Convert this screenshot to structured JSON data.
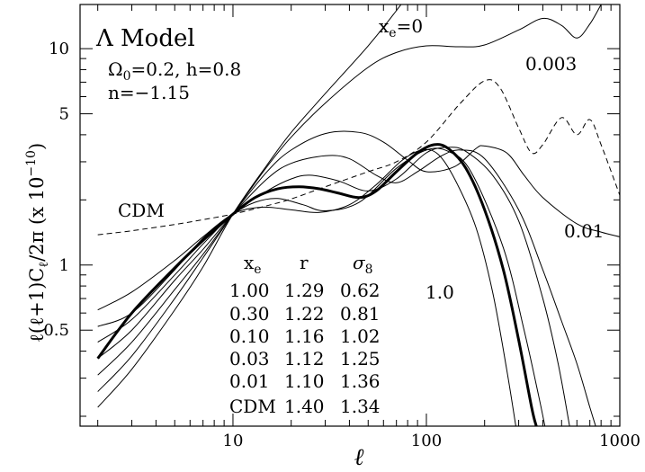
{
  "chart_data": {
    "type": "line",
    "xlabel": "ℓ",
    "ylabel": "ℓ(ℓ+1)C",
    "ylabel_sub": "ℓ",
    "ylabel_tail": "/2π (x 10",
    "ylabel_exp": "−10",
    "ylabel_close": ")",
    "xscale": "log",
    "yscale": "log",
    "xlim": [
      1.62,
      1000
    ],
    "ylim": [
      0.18,
      16
    ],
    "x_ticks": [
      {
        "value": 10,
        "label": "10"
      },
      {
        "value": 100,
        "label": "100"
      },
      {
        "value": 1000,
        "label": "1000"
      }
    ],
    "y_ticks": [
      {
        "value": 0.5,
        "label": "0.5"
      },
      {
        "value": 1,
        "label": "1"
      },
      {
        "value": 5,
        "label": "5"
      },
      {
        "value": 10,
        "label": "10"
      }
    ],
    "grid": false,
    "model": {
      "title": "Λ Model",
      "omega_label": "Ω",
      "omega_sub": "0",
      "omega_value": "=0.2, h=0.8",
      "n_label": "n=−1.15"
    },
    "annotations": {
      "xe0_main": "x",
      "xe0_sub": "e",
      "xe0_val": "=0",
      "v003": "0.003",
      "v001": "0.01",
      "v10": "1.0",
      "cdm": "CDM"
    },
    "table": {
      "headers": [
        {
          "main": "x",
          "sub": "e"
        },
        {
          "main": "r",
          "sub": ""
        },
        {
          "main": "σ",
          "sub": "8"
        }
      ],
      "rows": [
        [
          "1.00",
          "1.29",
          "0.62"
        ],
        [
          "0.30",
          "1.22",
          "0.81"
        ],
        [
          "0.10",
          "1.16",
          "1.02"
        ],
        [
          "0.03",
          "1.12",
          "1.25"
        ],
        [
          "0.01",
          "1.10",
          "1.36"
        ],
        [
          "CDM",
          "1.40",
          "1.34"
        ]
      ]
    },
    "series": [
      {
        "style": "solid",
        "width": "thin",
        "points": [
          [
            2,
            0.22
          ],
          [
            3,
            0.33
          ],
          [
            5,
            0.62
          ],
          [
            7,
            0.98
          ],
          [
            10,
            1.72
          ],
          [
            15,
            2.9
          ],
          [
            20,
            4.1
          ],
          [
            30,
            6.2
          ],
          [
            50,
            10.3
          ],
          [
            70,
            15
          ],
          [
            100,
            23
          ]
        ]
      },
      {
        "style": "solid",
        "width": "thin",
        "points": [
          [
            2,
            0.26
          ],
          [
            3,
            0.38
          ],
          [
            5,
            0.7
          ],
          [
            7,
            1.08
          ],
          [
            10,
            1.72
          ],
          [
            15,
            2.85
          ],
          [
            20,
            3.9
          ],
          [
            30,
            5.6
          ],
          [
            50,
            8.2
          ],
          [
            70,
            9.6
          ],
          [
            100,
            10.3
          ],
          [
            150,
            10.2
          ],
          [
            200,
            10.4
          ],
          [
            300,
            12.2
          ],
          [
            400,
            13.8
          ],
          [
            500,
            12.8
          ],
          [
            600,
            11.2
          ],
          [
            700,
            13
          ],
          [
            800,
            16
          ]
        ]
      },
      {
        "style": "dashed",
        "width": "thin",
        "points": [
          [
            2,
            1.38
          ],
          [
            3,
            1.44
          ],
          [
            5,
            1.54
          ],
          [
            7,
            1.62
          ],
          [
            10,
            1.72
          ],
          [
            15,
            1.88
          ],
          [
            20,
            2.02
          ],
          [
            30,
            2.3
          ],
          [
            50,
            2.7
          ],
          [
            70,
            3
          ],
          [
            100,
            3.7
          ],
          [
            150,
            5.6
          ],
          [
            200,
            7.1
          ],
          [
            240,
            6.6
          ],
          [
            300,
            4.3
          ],
          [
            350,
            3.3
          ],
          [
            400,
            3.6
          ],
          [
            500,
            4.8
          ],
          [
            600,
            4
          ],
          [
            700,
            4.7
          ],
          [
            800,
            3.6
          ],
          [
            1000,
            2.1
          ]
        ]
      },
      {
        "style": "solid",
        "width": "thin",
        "points": [
          [
            2,
            0.31
          ],
          [
            3,
            0.44
          ],
          [
            5,
            0.77
          ],
          [
            7,
            1.12
          ],
          [
            10,
            1.72
          ],
          [
            15,
            2.7
          ],
          [
            20,
            3.4
          ],
          [
            30,
            4.05
          ],
          [
            45,
            4.1
          ],
          [
            60,
            3.7
          ],
          [
            80,
            3.05
          ],
          [
            100,
            2.7
          ],
          [
            140,
            2.85
          ],
          [
            180,
            3.45
          ],
          [
            200,
            3.55
          ],
          [
            260,
            3.3
          ],
          [
            320,
            2.6
          ],
          [
            400,
            2.05
          ],
          [
            600,
            1.55
          ],
          [
            800,
            1.42
          ],
          [
            1000,
            1.35
          ]
        ]
      },
      {
        "style": "solid",
        "width": "thin",
        "points": [
          [
            2,
            0.37
          ],
          [
            3,
            0.5
          ],
          [
            5,
            0.85
          ],
          [
            7,
            1.18
          ],
          [
            10,
            1.72
          ],
          [
            15,
            2.5
          ],
          [
            20,
            2.95
          ],
          [
            30,
            3.2
          ],
          [
            40,
            3.1
          ],
          [
            55,
            2.6
          ],
          [
            70,
            2.4
          ],
          [
            90,
            2.7
          ],
          [
            120,
            3.2
          ],
          [
            150,
            3.4
          ],
          [
            200,
            3.1
          ],
          [
            300,
            1.8
          ],
          [
            400,
            0.95
          ],
          [
            500,
            0.55
          ],
          [
            600,
            0.35
          ],
          [
            700,
            0.22
          ],
          [
            750,
            0.18
          ]
        ]
      },
      {
        "style": "solid",
        "width": "thin",
        "points": [
          [
            2,
            0.44
          ],
          [
            3,
            0.56
          ],
          [
            5,
            0.9
          ],
          [
            7,
            1.25
          ],
          [
            10,
            1.72
          ],
          [
            15,
            2.2
          ],
          [
            20,
            2.5
          ],
          [
            25,
            2.6
          ],
          [
            35,
            2.45
          ],
          [
            50,
            2.2
          ],
          [
            70,
            2.5
          ],
          [
            100,
            3.3
          ],
          [
            130,
            3.5
          ],
          [
            160,
            3.35
          ],
          [
            220,
            2.6
          ],
          [
            300,
            1.6
          ],
          [
            400,
            0.7
          ],
          [
            480,
            0.35
          ],
          [
            550,
            0.18
          ]
        ]
      },
      {
        "style": "solid",
        "width": "thin",
        "points": [
          [
            2,
            0.52
          ],
          [
            3,
            0.6
          ],
          [
            5,
            0.95
          ],
          [
            7,
            1.33
          ],
          [
            10,
            1.72
          ],
          [
            13,
            1.95
          ],
          [
            17,
            2.03
          ],
          [
            23,
            1.9
          ],
          [
            30,
            1.78
          ],
          [
            45,
            1.95
          ],
          [
            70,
            2.8
          ],
          [
            100,
            3.4
          ],
          [
            130,
            3.35
          ],
          [
            170,
            2.7
          ],
          [
            250,
            1.2
          ],
          [
            320,
            0.5
          ],
          [
            380,
            0.25
          ],
          [
            410,
            0.18
          ]
        ]
      },
      {
        "style": "solid",
        "width": "thick",
        "points": [
          [
            2,
            0.37
          ],
          [
            3,
            0.6
          ],
          [
            5,
            0.97
          ],
          [
            7,
            1.3
          ],
          [
            10,
            1.72
          ],
          [
            13,
            2.05
          ],
          [
            17,
            2.25
          ],
          [
            22,
            2.3
          ],
          [
            28,
            2.25
          ],
          [
            35,
            2.15
          ],
          [
            45,
            2.05
          ],
          [
            55,
            2.2
          ],
          [
            70,
            2.7
          ],
          [
            90,
            3.3
          ],
          [
            110,
            3.6
          ],
          [
            130,
            3.45
          ],
          [
            160,
            2.8
          ],
          [
            200,
            1.8
          ],
          [
            250,
            0.95
          ],
          [
            300,
            0.45
          ],
          [
            350,
            0.22
          ],
          [
            370,
            0.18
          ]
        ]
      },
      {
        "style": "solid",
        "width": "thin",
        "points": [
          [
            2,
            0.62
          ],
          [
            3,
            0.75
          ],
          [
            5,
            1.05
          ],
          [
            7,
            1.35
          ],
          [
            10,
            1.72
          ],
          [
            14,
            1.85
          ],
          [
            20,
            1.8
          ],
          [
            28,
            1.75
          ],
          [
            40,
            1.9
          ],
          [
            55,
            2.35
          ],
          [
            75,
            3.05
          ],
          [
            95,
            3.4
          ],
          [
            115,
            3.25
          ],
          [
            140,
            2.5
          ],
          [
            180,
            1.5
          ],
          [
            220,
            0.75
          ],
          [
            260,
            0.33
          ],
          [
            290,
            0.18
          ]
        ]
      }
    ]
  }
}
